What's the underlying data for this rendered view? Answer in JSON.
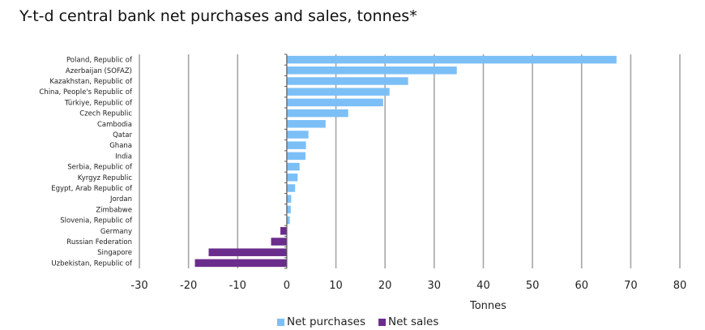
{
  "chart_data": {
    "type": "bar",
    "orientation": "horizontal",
    "title": "Y-t-d central bank net purchases and sales, tonnes*",
    "xlabel": "Tonnes",
    "ylabel": "",
    "xlim": [
      -30,
      80
    ],
    "xticks": [
      -30,
      -20,
      -10,
      0,
      10,
      20,
      30,
      40,
      50,
      60,
      70,
      80
    ],
    "grid": "vertical",
    "legend_position": "bottom-center",
    "categories": [
      "Poland, Republic of",
      "Azerbaijan (SOFAZ)",
      "Kazakhstan, Republic of",
      "China, People's Republic of",
      "Türkiye, Republic of",
      "Czech Republic",
      "Cambodia",
      "Qatar",
      "Ghana",
      "India",
      "Serbia, Republic of",
      "Kyrgyz Republic",
      "Egypt, Arab Republic of",
      "Jordan",
      "Zimbabwe",
      "Slovenia, Republic of",
      "Germany",
      "Russian Federation",
      "Singapore",
      "Uzbekistan, Republic of"
    ],
    "values": [
      67.1,
      34.6,
      24.7,
      20.9,
      19.6,
      12.5,
      7.9,
      4.4,
      3.9,
      3.8,
      2.6,
      2.2,
      1.7,
      0.9,
      0.8,
      0.6,
      -1.3,
      -3.2,
      -15.9,
      -18.7
    ],
    "series": [
      {
        "name": "Net purchases",
        "color": "#7cbff7"
      },
      {
        "name": "Net sales",
        "color": "#6b2d8c"
      }
    ]
  },
  "colors": {
    "gridline": "#a6a6a6",
    "axis": "#595959"
  }
}
